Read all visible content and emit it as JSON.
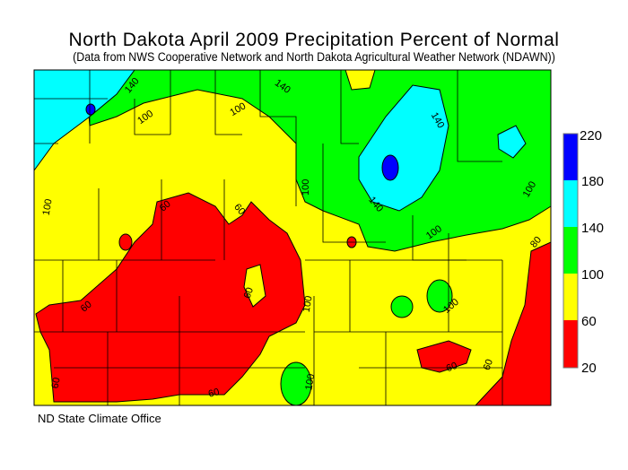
{
  "title": "North Dakota April 2009 Precipitation Percent of Normal",
  "subtitle": "(Data from NWS Cooperative Network and North Dakota Agricultural Weather Network (NDAWN))",
  "footer": "ND State Climate Office",
  "legend": {
    "ticks": [
      "220",
      "180",
      "140",
      "100",
      "60",
      "20"
    ],
    "bins": [
      {
        "range": "180-220",
        "color": "#0000ff"
      },
      {
        "range": "140-180",
        "color": "#00ffff"
      },
      {
        "range": "100-140",
        "color": "#00ff00"
      },
      {
        "range": "60-100",
        "color": "#ffff00"
      },
      {
        "range": "20-60",
        "color": "#ff0000"
      }
    ]
  },
  "colors": {
    "blue": "#0000ff",
    "cyan": "#00ffff",
    "green": "#00ff00",
    "yellow": "#ffff00",
    "red": "#ff0000"
  },
  "contour_labels": [
    "140",
    "140",
    "100",
    "100",
    "140",
    "100",
    "140",
    "100",
    "80",
    "60",
    "60",
    "100",
    "60",
    "60",
    "100",
    "100",
    "100",
    "100",
    "60",
    "60",
    "60",
    "60"
  ]
}
